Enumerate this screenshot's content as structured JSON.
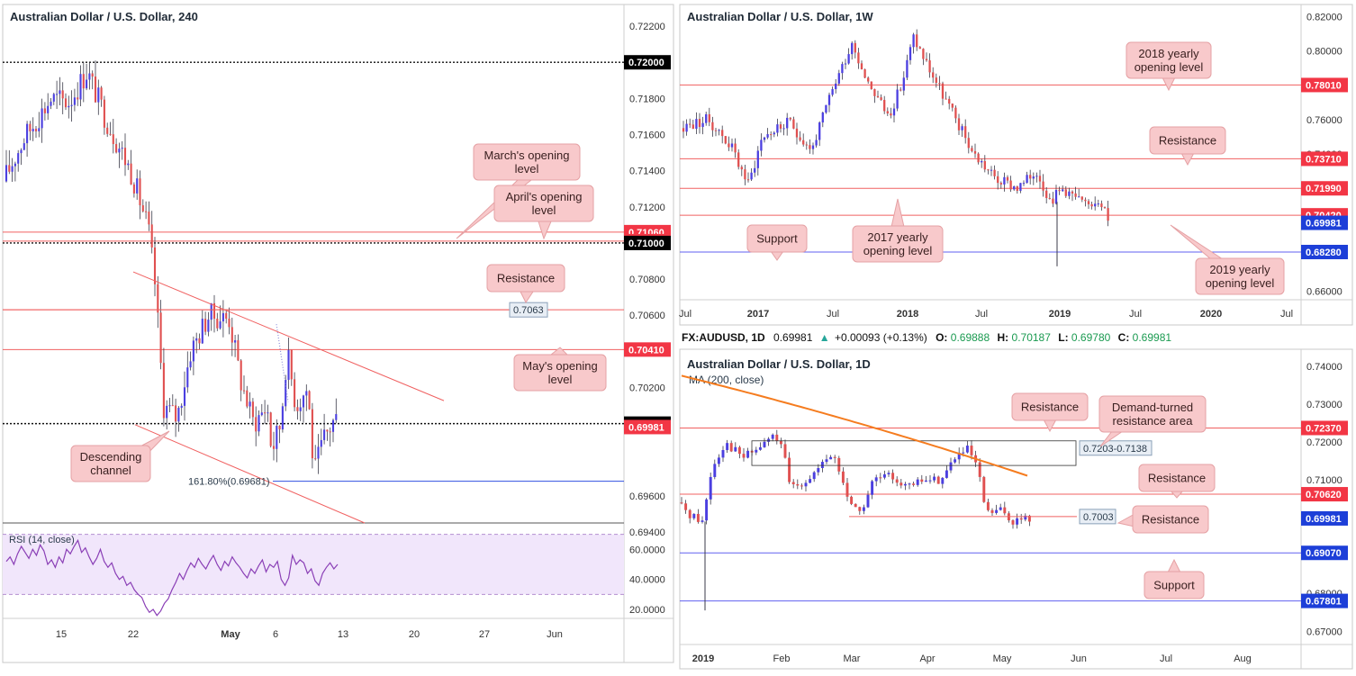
{
  "colors": {
    "up": "#4b3fe0",
    "down": "#e05050",
    "level_red": "#f06060",
    "level_blue": "#6060f0",
    "badge_red": "#f23645",
    "badge_black": "#000000",
    "badge_blue": "#1d3fd8",
    "annotation_bg": "#f8c9cb",
    "rsi_fill": "#f1e6fb",
    "rsi_line": "#8a3fb6",
    "ma_line": "#f57c1f"
  },
  "chart_data": [
    {
      "id": "h4",
      "type": "candlestick",
      "title": "Australian Dollar / U.S. Dollar, 240",
      "x_ticks": [
        "15",
        "22",
        "May",
        "6",
        "13",
        "20",
        "27",
        "Jun"
      ],
      "y_ticks": [
        "0.72200",
        "0.71800",
        "0.71600",
        "0.71400",
        "0.71200",
        "0.70800",
        "0.70600",
        "0.70200",
        "0.69600",
        "0.69400"
      ],
      "ylim": [
        0.6945,
        0.7232
      ],
      "levels": [
        {
          "value": 0.72,
          "label": "0.72000",
          "style": "dotted",
          "badge": "black"
        },
        {
          "value": 0.7106,
          "label": "0.71060",
          "style": "solid",
          "badge": "red"
        },
        {
          "value": 0.7101,
          "label": "0.71010",
          "style": "solid",
          "badge": "red"
        },
        {
          "value": 0.71,
          "label": "0.71000",
          "style": "dotted",
          "badge": "black"
        },
        {
          "value": 0.7063,
          "label": "",
          "style": "solid",
          "badge": "none"
        },
        {
          "value": 0.7041,
          "label": "0.70410",
          "style": "solid",
          "badge": "red"
        },
        {
          "value": 0.7,
          "label": "0.70000",
          "style": "dotted",
          "badge": "black"
        },
        {
          "value": 0.69981,
          "label": "0.69981",
          "style": "none",
          "badge": "red"
        },
        {
          "value": 0.69681,
          "label": "",
          "style": "blue",
          "badge": "none"
        }
      ],
      "annotations": [
        {
          "text": "March's opening level",
          "lines": [
            "March's opening",
            "level"
          ]
        },
        {
          "text": "April's opening level",
          "lines": [
            "April's opening",
            "level"
          ]
        },
        {
          "text": "Resistance",
          "lines": [
            "Resistance"
          ]
        },
        {
          "text": "May's opening level",
          "lines": [
            "May's opening",
            "level"
          ]
        },
        {
          "text": "Descending channel",
          "lines": [
            "Descending",
            "channel"
          ]
        }
      ],
      "level_tag": "0.7063",
      "fib_label": "161.80%(0.69681)",
      "rsi": {
        "label": "RSI (14, close)",
        "y_ticks": [
          "60.0000",
          "40.0000",
          "20.0000"
        ],
        "ylim": [
          14,
          74
        ],
        "band": [
          30,
          70
        ],
        "values": [
          52,
          55,
          50,
          57,
          62,
          58,
          54,
          60,
          56,
          63,
          59,
          50,
          53,
          48,
          55,
          51,
          60,
          57,
          62,
          66,
          58,
          61,
          55,
          50,
          54,
          60,
          52,
          48,
          51,
          44,
          40,
          42,
          36,
          38,
          33,
          30,
          28,
          22,
          18,
          20,
          16,
          19,
          24,
          27,
          33,
          38,
          44,
          40,
          46,
          51,
          48,
          54,
          50,
          47,
          52,
          56,
          50,
          46,
          52,
          49,
          55,
          51,
          48,
          44,
          41,
          47,
          44,
          49,
          53,
          45,
          50,
          48,
          52,
          40,
          36,
          41,
          56,
          50,
          53,
          51,
          44,
          47,
          39,
          36,
          44,
          48,
          51,
          47,
          50
        ]
      }
    },
    {
      "id": "weekly",
      "type": "candlestick",
      "title": "Australian Dollar / U.S. Dollar, 1W",
      "x_ticks": [
        "Jul",
        "2017",
        "Jul",
        "2018",
        "Jul",
        "2019",
        "Jul",
        "2020",
        "Jul"
      ],
      "y_ticks": [
        "0.82000",
        "0.80000",
        "0.76000",
        "0.74000",
        "0.70000",
        "0.66000"
      ],
      "ylim": [
        0.655,
        0.827
      ],
      "levels": [
        {
          "value": 0.7801,
          "label": "0.78010",
          "badge": "red"
        },
        {
          "value": 0.7371,
          "label": "0.73710",
          "badge": "red"
        },
        {
          "value": 0.7199,
          "label": "0.71990",
          "badge": "red"
        },
        {
          "value": 0.7042,
          "label": "0.70420",
          "badge": "red"
        },
        {
          "value": 0.69981,
          "label": "0.69981",
          "badge": "blue"
        },
        {
          "value": 0.6828,
          "label": "0.68280",
          "badge": "blue"
        }
      ],
      "annotations": [
        {
          "text": "2018 yearly opening level",
          "lines": [
            "2018 yearly",
            "opening level"
          ]
        },
        {
          "text": "Resistance",
          "lines": [
            "Resistance"
          ]
        },
        {
          "text": "Support",
          "lines": [
            "Support"
          ]
        },
        {
          "text": "2017 yearly opening level",
          "lines": [
            "2017 yearly",
            "opening level"
          ]
        },
        {
          "text": "2019 yearly opening level",
          "lines": [
            "2019 yearly",
            "opening level"
          ]
        }
      ]
    },
    {
      "id": "daily",
      "type": "candlestick",
      "title": "Australian Dollar / U.S. Dollar, 1D",
      "indicator": "MA (200, close)",
      "x_ticks": [
        "2019",
        "Feb",
        "Mar",
        "Apr",
        "May",
        "Jun",
        "Jul",
        "Aug"
      ],
      "y_ticks": [
        "0.74000",
        "0.73000",
        "0.72000",
        "0.71000",
        "0.68000",
        "0.67000"
      ],
      "ylim": [
        0.6665,
        0.7445
      ],
      "levels": [
        {
          "value": 0.7237,
          "label": "0.72370",
          "badge": "red"
        },
        {
          "value": 0.7062,
          "label": "0.70620",
          "badge": "red"
        },
        {
          "value": 0.69981,
          "label": "0.69981",
          "badge": "blue"
        },
        {
          "value": 0.6907,
          "label": "0.69070",
          "badge": "blue"
        },
        {
          "value": 0.67801,
          "label": "0.67801",
          "badge": "blue"
        }
      ],
      "zone_tag": "0.7203-0.7138",
      "level_tag": "0.7003",
      "annotations": [
        {
          "text": "Resistance",
          "lines": [
            "Resistance"
          ]
        },
        {
          "text": "Demand-turned resistance area",
          "lines": [
            "Demand-turned",
            "resistance area"
          ]
        },
        {
          "text": "Resistance",
          "lines": [
            "Resistance"
          ]
        },
        {
          "text": "Resistance",
          "lines": [
            "Resistance"
          ]
        },
        {
          "text": "Support",
          "lines": [
            "Support"
          ]
        }
      ]
    }
  ],
  "quote_bar": {
    "symbol": "FX:AUDUSD, 1D",
    "price": "0.69981",
    "arrow": "▲",
    "change": "+0.00093 (+0.13%)",
    "o_label": "O:",
    "o_value": "0.69888",
    "h_label": "H:",
    "h_value": "0.70187",
    "l_label": "L:",
    "l_value": "0.69780",
    "c_label": "C:",
    "c_value": "0.69981"
  }
}
